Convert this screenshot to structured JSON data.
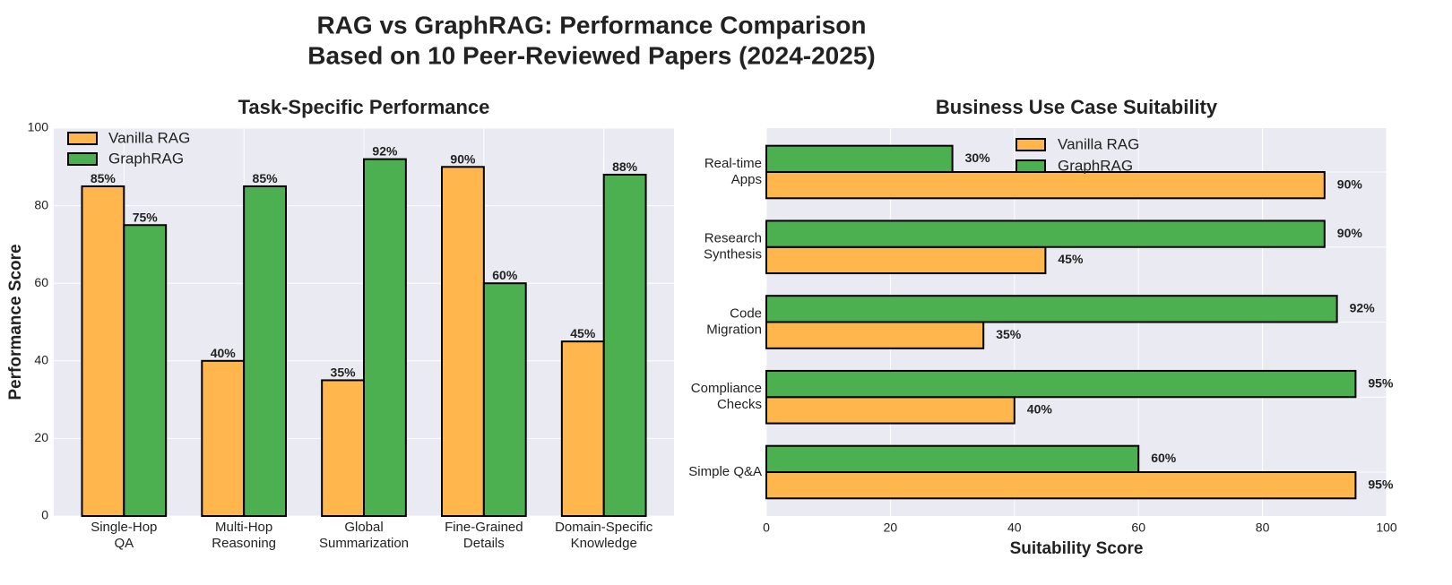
{
  "suptitle": [
    "RAG vs GraphRAG: Performance Comparison",
    "Based on 10 Peer-Reviewed Papers (2024-2025)"
  ],
  "colors": {
    "vanilla": "#FFB74D",
    "graphrag": "#4CAF50",
    "background": "#EAEAF2",
    "edge": "#000000"
  },
  "chart_data": [
    {
      "type": "bar",
      "title": "Task-Specific Performance",
      "xlabel": "",
      "ylabel": "Performance Score",
      "ylim": [
        0,
        100
      ],
      "yticks": [
        0,
        20,
        40,
        60,
        80,
        100
      ],
      "categories": [
        [
          "Single-Hop",
          "QA"
        ],
        [
          "Multi-Hop",
          "Reasoning"
        ],
        [
          "Global",
          "Summarization"
        ],
        [
          "Fine-Grained",
          "Details"
        ],
        [
          "Domain-Specific",
          "Knowledge"
        ]
      ],
      "series": [
        {
          "name": "Vanilla RAG",
          "values": [
            85,
            40,
            35,
            90,
            45
          ]
        },
        {
          "name": "GraphRAG",
          "values": [
            75,
            85,
            92,
            60,
            88
          ]
        }
      ],
      "legend": "top-left",
      "grid": true
    },
    {
      "type": "bar",
      "orientation": "horizontal",
      "title": "Business Use Case Suitability",
      "xlabel": "Suitability Score",
      "ylabel": "",
      "xlim": [
        0,
        100
      ],
      "xticks": [
        0,
        20,
        40,
        60,
        80,
        100
      ],
      "categories": [
        [
          "Simple Q&A"
        ],
        [
          "Compliance",
          "Checks"
        ],
        [
          "Code",
          "Migration"
        ],
        [
          "Research",
          "Synthesis"
        ],
        [
          "Real-time",
          "Apps"
        ]
      ],
      "series": [
        {
          "name": "Vanilla RAG",
          "values": [
            95,
            40,
            35,
            45,
            90
          ]
        },
        {
          "name": "GraphRAG",
          "values": [
            60,
            95,
            92,
            90,
            30
          ]
        }
      ],
      "legend": "top-center",
      "grid": true
    }
  ]
}
